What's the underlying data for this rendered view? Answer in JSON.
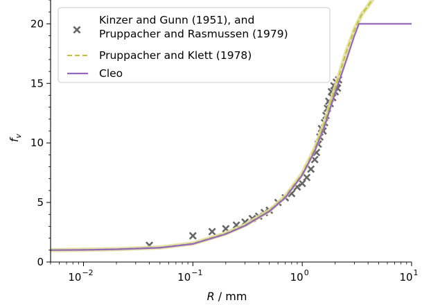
{
  "chart_data": {
    "type": "line",
    "xlabel": "R / mm",
    "ylabel": "f",
    "ylabel_sub": "v",
    "xscale": "log",
    "xlim": [
      0.005,
      10
    ],
    "ylim": [
      0,
      22
    ],
    "x_ticks": [
      {
        "value": 0.01,
        "base": "10",
        "exp": "−2"
      },
      {
        "value": 0.1,
        "base": "10",
        "exp": "−1"
      },
      {
        "value": 1,
        "base": "10",
        "exp": "0"
      },
      {
        "value": 10,
        "base": "10",
        "exp": "1"
      }
    ],
    "y_ticks": [
      0,
      5,
      10,
      15,
      20
    ],
    "grid": false,
    "legend_position": "top-left",
    "series": [
      {
        "name_lines": [
          "Kinzer and Gunn (1951), and",
          "Pruppacher and Rasmussen (1979)"
        ],
        "kind": "scatter",
        "marker": "x",
        "color": "#666666",
        "x": [
          0.04,
          0.1,
          0.15,
          0.2,
          0.25,
          0.3,
          0.35,
          0.4,
          0.45,
          0.5,
          0.6,
          0.7,
          0.8,
          0.9,
          1.0,
          1.1,
          1.2,
          1.3,
          1.35,
          1.4,
          1.45,
          1.5,
          1.55,
          1.6,
          1.65,
          1.7,
          1.75,
          1.8,
          1.85,
          1.9,
          1.95,
          2.0,
          2.05,
          2.1,
          2.15
        ],
        "y": [
          1.4,
          2.2,
          2.55,
          2.8,
          3.1,
          3.35,
          3.65,
          3.85,
          4.15,
          4.35,
          5.0,
          5.4,
          5.75,
          6.3,
          6.6,
          7.1,
          7.8,
          8.6,
          9.2,
          9.9,
          10.5,
          11.2,
          11.0,
          11.7,
          12.3,
          12.9,
          13.5,
          13.3,
          14.3,
          13.8,
          14.8,
          14.3,
          15.1,
          14.6,
          15.3
        ]
      },
      {
        "name": "Pruppacher and Klett (1978)",
        "kind": "line",
        "style": "dashed",
        "color": "#c2c232",
        "band_color": "#e0e0a0",
        "x": [
          0.005,
          0.01,
          0.02,
          0.05,
          0.1,
          0.2,
          0.3,
          0.5,
          0.7,
          1.0,
          1.3,
          1.6,
          2.0,
          2.5,
          3.0,
          3.5,
          4.0,
          4.5,
          5.0
        ],
        "y": [
          1.0,
          1.03,
          1.08,
          1.22,
          1.55,
          2.4,
          3.1,
          4.3,
          5.5,
          7.4,
          9.5,
          11.7,
          14.6,
          17.5,
          19.5,
          20.8,
          21.5,
          22.2,
          23.0
        ]
      },
      {
        "name": "Cleo",
        "kind": "line",
        "style": "solid",
        "color": "#9467bd",
        "x": [
          0.005,
          0.01,
          0.02,
          0.05,
          0.1,
          0.2,
          0.3,
          0.5,
          0.7,
          1.0,
          1.3,
          1.6,
          2.0,
          2.5,
          3.0,
          3.3,
          3.5,
          4.0,
          6.0,
          10.0
        ],
        "y": [
          1.0,
          1.02,
          1.07,
          1.2,
          1.52,
          2.35,
          3.05,
          4.25,
          5.4,
          7.3,
          9.3,
          11.4,
          14.2,
          16.8,
          19.0,
          20.0,
          20.0,
          20.0,
          20.0,
          20.0
        ]
      }
    ]
  }
}
